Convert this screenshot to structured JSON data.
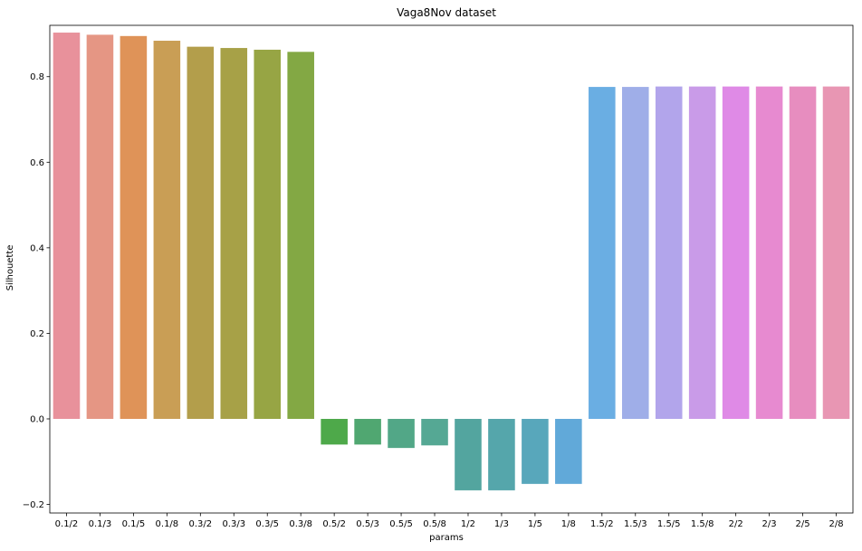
{
  "chart_data": {
    "type": "bar",
    "title": "Vaga8Nov dataset",
    "xlabel": "params",
    "ylabel": "Silhouette",
    "ylim": [
      -0.22,
      0.92
    ],
    "yticks": [
      -0.2,
      0.0,
      0.2,
      0.4,
      0.6,
      0.8
    ],
    "ytick_labels": [
      "−0.2",
      "0.0",
      "0.2",
      "0.4",
      "0.6",
      "0.8"
    ],
    "grid": false,
    "categories": [
      "0.1/2",
      "0.1/3",
      "0.1/5",
      "0.1/8",
      "0.3/2",
      "0.3/3",
      "0.3/5",
      "0.3/8",
      "0.5/2",
      "0.5/3",
      "0.5/5",
      "0.5/8",
      "1/2",
      "1/3",
      "1/5",
      "1/8",
      "1.5/2",
      "1.5/3",
      "1.5/5",
      "1.5/8",
      "2/2",
      "2/3",
      "2/5",
      "2/8"
    ],
    "values": [
      0.903,
      0.898,
      0.895,
      0.884,
      0.87,
      0.867,
      0.863,
      0.858,
      -0.06,
      -0.06,
      -0.068,
      -0.062,
      -0.167,
      -0.167,
      -0.152,
      -0.152,
      0.776,
      0.776,
      0.777,
      0.777,
      0.777,
      0.777,
      0.777,
      0.777
    ],
    "colors": [
      "#e8919b",
      "#e59684",
      "#df9358",
      "#c99e55",
      "#b39e4b",
      "#a7a147",
      "#97a544",
      "#83a844",
      "#4ea94a",
      "#50a771",
      "#52a787",
      "#55a894",
      "#53a59f",
      "#55a6ab",
      "#58a7bb",
      "#61a9d9",
      "#6aaee3",
      "#9faee8",
      "#b2a5eb",
      "#c99be8",
      "#df8ae6",
      "#e78ad0",
      "#e78dbf",
      "#e896b3"
    ]
  }
}
